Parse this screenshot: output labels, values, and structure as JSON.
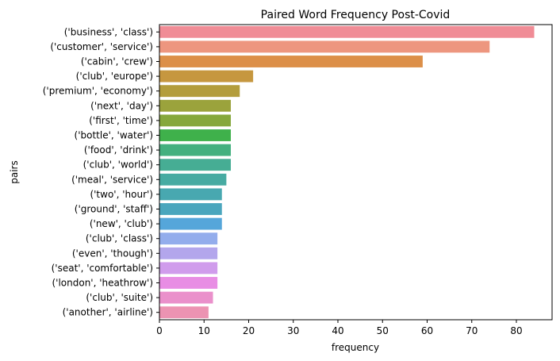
{
  "chart_data": {
    "type": "bar",
    "orientation": "horizontal",
    "title": "Paired Word Frequency Post-Covid",
    "xlabel": "frequency",
    "ylabel": "pairs",
    "xlim": [
      0,
      88
    ],
    "x_ticks": [
      0,
      10,
      20,
      30,
      40,
      50,
      60,
      70,
      80
    ],
    "grid": false,
    "legend": "none",
    "categories": [
      "('business', 'class')",
      "('customer', 'service')",
      "('cabin', 'crew')",
      "('club', 'europe')",
      "('premium', 'economy')",
      "('next', 'day')",
      "('first', 'time')",
      "('bottle', 'water')",
      "('food', 'drink')",
      "('club', 'world')",
      "('meal', 'service')",
      "('two', 'hour')",
      "('ground', 'staff')",
      "('new', 'club')",
      "('club', 'class')",
      "('even', 'though')",
      "('seat', 'comfortable')",
      "('london', 'heathrow')",
      "('club', 'suite')",
      "('another', 'airline')"
    ],
    "values": [
      84,
      74,
      59,
      21,
      18,
      16,
      16,
      16,
      16,
      16,
      15,
      14,
      14,
      14,
      13,
      13,
      13,
      13,
      12,
      11
    ],
    "colors": [
      "#f08c96",
      "#ed967f",
      "#dc8f48",
      "#c6973f",
      "#b39d3c",
      "#9ba33c",
      "#86a83c",
      "#3fb14b",
      "#44b07f",
      "#46ad94",
      "#47aba2",
      "#48a8b0",
      "#4aa6bd",
      "#55a6da",
      "#93adec",
      "#b3a6ec",
      "#d09cec",
      "#e88de4",
      "#ea90cb",
      "#ec93b2"
    ]
  }
}
